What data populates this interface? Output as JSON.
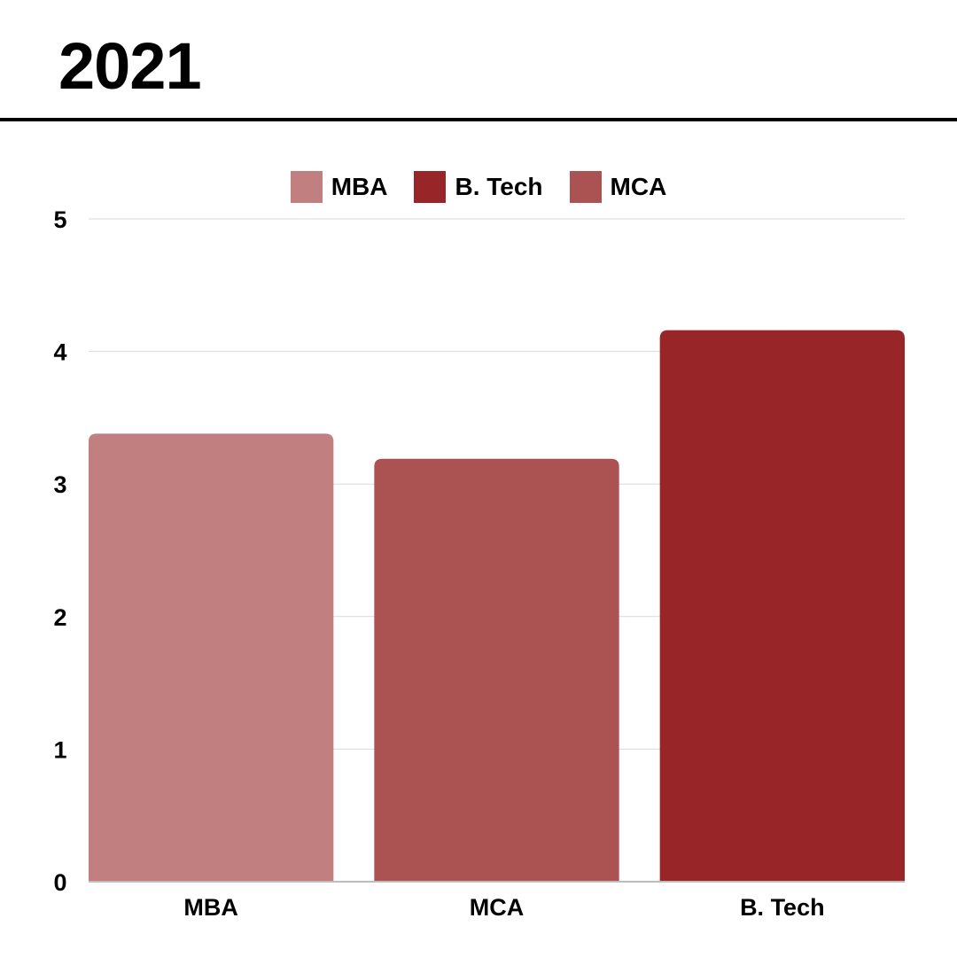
{
  "chart_data": {
    "type": "bar",
    "title": "2021",
    "categories": [
      "MBA",
      "MCA",
      "B. Tech"
    ],
    "values": [
      3.38,
      3.19,
      4.16
    ],
    "colors": [
      "#C17F7F",
      "#AB5353",
      "#982628"
    ],
    "ylim": [
      0,
      5
    ],
    "yticks": [
      "0",
      "1",
      "2",
      "3",
      "4",
      "5"
    ],
    "grid": true,
    "legend_position": "top-center",
    "legend": [
      {
        "label": "MBA",
        "color": "#C17F7F"
      },
      {
        "label": "B. Tech",
        "color": "#982628"
      },
      {
        "label": "MCA",
        "color": "#AB5353"
      }
    ]
  }
}
